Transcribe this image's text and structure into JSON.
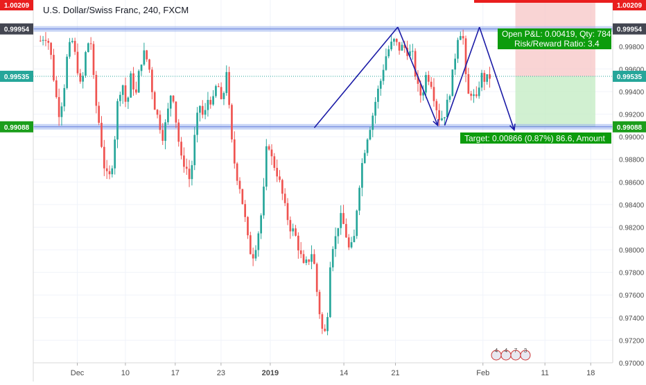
{
  "chart_data": {
    "type": "candlestick",
    "title": "U.S. Dollar/Swiss Franc, 240, FXCM",
    "ylim": [
      0.97,
      1.0021
    ],
    "y_ticks": [
      "0.99800",
      "0.99600",
      "0.99400",
      "0.99200",
      "0.99000",
      "0.98800",
      "0.98600",
      "0.98400",
      "0.98200",
      "0.98000",
      "0.97800",
      "0.97600",
      "0.97400",
      "0.97200",
      "0.97000"
    ],
    "x_tick_labels": [
      "Dec",
      "10",
      "17",
      "23",
      "2019",
      "14",
      "21",
      "Feb",
      "11",
      "18"
    ],
    "price_tags": [
      {
        "label": "1.00209",
        "role": "stop",
        "color": "#e91e1e"
      },
      {
        "label": "0.99954",
        "role": "resistance",
        "color": "#434651"
      },
      {
        "label": "0.99535",
        "role": "current",
        "color": "#26a69a"
      },
      {
        "label": "0.99088",
        "role": "target",
        "color": "#1b9e1b"
      }
    ],
    "levels": {
      "resistance": 0.99954,
      "support": 0.99088,
      "current": 0.99535,
      "stop": 1.00209
    },
    "position_info": {
      "line1": "Open P&L: 0.00419, Qty: 784",
      "line2": "Risk/Reward Ratio: 3.4"
    },
    "target_label": "Target: 0.00866 (0.87%) 86.6, Amount",
    "pattern_points": [
      [
        0.485,
        0.9908
      ],
      [
        0.629,
        0.9997
      ],
      [
        0.698,
        0.991
      ],
      [
        0.71,
        0.991
      ],
      [
        0.77,
        0.9997
      ],
      [
        0.83,
        0.9906
      ]
    ],
    "price_path": [
      0.9985,
      0.999,
      0.9982,
      0.995,
      0.992,
      0.9935,
      0.9975,
      0.9985,
      0.9965,
      0.994,
      0.9975,
      0.999,
      0.9935,
      0.991,
      0.9875,
      0.986,
      0.988,
      0.993,
      0.995,
      0.9925,
      0.9955,
      0.9935,
      0.9965,
      0.9975,
      0.996,
      0.993,
      0.9915,
      0.99,
      0.992,
      0.9945,
      0.991,
      0.988,
      0.9875,
      0.986,
      0.99,
      0.993,
      0.9915,
      0.9935,
      0.993,
      0.995,
      0.9925,
      0.996,
      0.99,
      0.987,
      0.9855,
      0.983,
      0.98,
      0.9795,
      0.9815,
      0.984,
      0.99,
      0.988,
      0.987,
      0.9855,
      0.9835,
      0.982,
      0.9815,
      0.98,
      0.9785,
      0.979,
      0.98,
      0.976,
      0.973,
      0.9725,
      0.98,
      0.981,
      0.983,
      0.982,
      0.98,
      0.9805,
      0.985,
      0.988,
      0.99,
      0.9915,
      0.9935,
      0.995,
      0.997,
      0.998,
      0.9985,
      0.9978,
      0.998,
      0.9975,
      0.9972,
      0.9945,
      0.9935,
      0.9955,
      0.995,
      0.993,
      0.9915,
      0.992,
      0.9935,
      0.996,
      0.999,
      0.9995,
      0.9935,
      0.994,
      0.993,
      0.9955,
      0.995,
      0.9953
    ],
    "legend_badges": [
      "4",
      "4",
      "7",
      "3"
    ]
  }
}
